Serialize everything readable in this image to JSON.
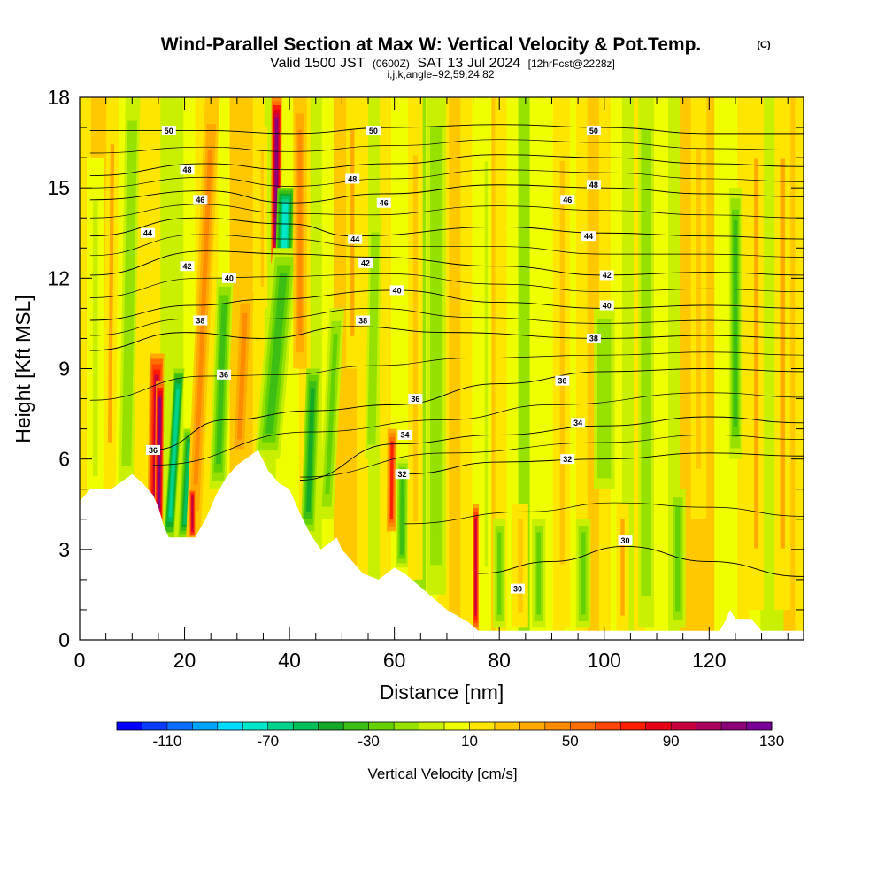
{
  "title": {
    "main": "Wind-Parallel Section at Max W: Vertical Velocity & Pot.Temp.",
    "copyright": "(C)",
    "line2_a": "Valid 1500 JST",
    "line2_b": "(0600Z)",
    "line2_c": "SAT 13 Jul 2024",
    "line2_d": "[12hrFcst@2228z]",
    "line3": "i,j,k,angle=92,59,24,82"
  },
  "chart_data": {
    "type": "heatmap",
    "xlabel": "Distance [nm]",
    "ylabel": "Height [Kft MSL]",
    "xlim": [
      0,
      138
    ],
    "ylim": [
      0,
      18
    ],
    "xticks": [
      0,
      20,
      40,
      60,
      80,
      100,
      120
    ],
    "xtick_labels": [
      "0",
      "20",
      "40",
      "60",
      "80",
      "100",
      "120"
    ],
    "yticks": [
      0,
      3,
      6,
      9,
      12,
      15,
      18
    ],
    "ytick_labels": [
      "0",
      "3",
      "6",
      "9",
      "12",
      "15",
      "18"
    ],
    "colorbar": {
      "title": "Vertical Velocity [cm/s]",
      "min": -130,
      "step": 10,
      "labels": [
        "-110",
        "-70",
        "-30",
        "10",
        "50",
        "90",
        "130"
      ],
      "colors": [
        "#0000ff",
        "#0a3cff",
        "#0a6eff",
        "#00a4ff",
        "#00dcff",
        "#00e6c8",
        "#00d28c",
        "#00be5a",
        "#14aa28",
        "#3cbe14",
        "#64d200",
        "#96e100",
        "#c8f000",
        "#f0ff00",
        "#ffe600",
        "#ffc800",
        "#ffaa00",
        "#ff8c00",
        "#ff6e00",
        "#ff4600",
        "#ff1e00",
        "#e60014",
        "#c8003c",
        "#aa005a",
        "#8c0078",
        "#780096"
      ]
    },
    "terrain_kft": [
      [
        0,
        4.6
      ],
      [
        2,
        5.0
      ],
      [
        6,
        5.0
      ],
      [
        10,
        5.5
      ],
      [
        12,
        5.2
      ],
      [
        14,
        4.8
      ],
      [
        15,
        4.4
      ],
      [
        16,
        3.8
      ],
      [
        17,
        3.4
      ],
      [
        20,
        3.4
      ],
      [
        22,
        3.4
      ],
      [
        24,
        4.0
      ],
      [
        26,
        4.8
      ],
      [
        28,
        5.4
      ],
      [
        30,
        5.8
      ],
      [
        34,
        6.3
      ],
      [
        36,
        5.6
      ],
      [
        38,
        5.2
      ],
      [
        40,
        5.0
      ],
      [
        42,
        4.2
      ],
      [
        44,
        3.5
      ],
      [
        46,
        3.0
      ],
      [
        49,
        3.4
      ],
      [
        50,
        3.0
      ],
      [
        52,
        2.6
      ],
      [
        54,
        2.2
      ],
      [
        57,
        2.0
      ],
      [
        60,
        2.4
      ],
      [
        62,
        2.2
      ],
      [
        66,
        1.6
      ],
      [
        70,
        1.0
      ],
      [
        74,
        0.6
      ],
      [
        76,
        0.3
      ],
      [
        122,
        0.3
      ],
      [
        123,
        0.6
      ],
      [
        124,
        1.0
      ],
      [
        125,
        0.7
      ],
      [
        128,
        0.7
      ],
      [
        130,
        0.3
      ],
      [
        138,
        0.3
      ]
    ],
    "series": [
      {
        "name": "30",
        "values": [
          [
            76,
            2.2
          ],
          [
            90,
            2.6
          ],
          [
            104,
            3.1
          ],
          [
            120,
            2.6
          ],
          [
            138,
            2.1
          ]
        ]
      },
      {
        "name": "32",
        "values": [
          [
            62,
            5.5
          ],
          [
            80,
            5.9
          ],
          [
            100,
            6.0
          ],
          [
            120,
            6.2
          ],
          [
            138,
            6.1
          ]
        ]
      },
      {
        "name": "34",
        "values": [
          [
            42,
            5.3
          ],
          [
            60,
            6.5
          ],
          [
            80,
            6.8
          ],
          [
            100,
            7.1
          ],
          [
            120,
            7.4
          ],
          [
            138,
            7.2
          ]
        ]
      },
      {
        "name": "36",
        "values": [
          [
            14,
            6.3
          ],
          [
            28,
            7.3
          ],
          [
            44,
            7.6
          ],
          [
            60,
            7.8
          ],
          [
            80,
            8.5
          ],
          [
            100,
            8.9
          ],
          [
            120,
            9.0
          ],
          [
            138,
            8.9
          ]
        ]
      },
      {
        "name": "38",
        "values": [
          [
            2,
            9.6
          ],
          [
            20,
            10.2
          ],
          [
            35,
            10.0
          ],
          [
            52,
            10.4
          ],
          [
            70,
            10.2
          ],
          [
            100,
            10.0
          ],
          [
            120,
            10.1
          ],
          [
            138,
            10.0
          ]
        ]
      },
      {
        "name": "40",
        "values": [
          [
            2,
            10.6
          ],
          [
            22,
            11.1
          ],
          [
            36,
            11.3
          ],
          [
            60,
            11.6
          ],
          [
            80,
            11.2
          ],
          [
            100,
            11.0
          ],
          [
            120,
            11.1
          ],
          [
            138,
            11.0
          ]
        ]
      },
      {
        "name": "42",
        "values": [
          [
            2,
            12.1
          ],
          [
            24,
            12.9
          ],
          [
            40,
            12.8
          ],
          [
            56,
            12.7
          ],
          [
            80,
            12.4
          ],
          [
            100,
            12.1
          ],
          [
            120,
            12.2
          ],
          [
            138,
            12.1
          ]
        ]
      },
      {
        "name": "44",
        "values": [
          [
            2,
            13.4
          ],
          [
            22,
            14.0
          ],
          [
            40,
            13.8
          ],
          [
            52,
            13.4
          ],
          [
            80,
            13.7
          ],
          [
            100,
            13.5
          ],
          [
            120,
            13.4
          ],
          [
            138,
            13.3
          ]
        ]
      },
      {
        "name": "46",
        "values": [
          [
            2,
            14.6
          ],
          [
            24,
            14.9
          ],
          [
            40,
            14.5
          ],
          [
            58,
            14.8
          ],
          [
            80,
            15.1
          ],
          [
            100,
            15.0
          ],
          [
            120,
            14.8
          ],
          [
            138,
            14.7
          ]
        ]
      },
      {
        "name": "48",
        "values": [
          [
            2,
            15.4
          ],
          [
            24,
            15.8
          ],
          [
            40,
            15.6
          ],
          [
            60,
            15.8
          ],
          [
            80,
            16.1
          ],
          [
            100,
            16.0
          ],
          [
            120,
            15.8
          ],
          [
            138,
            15.7
          ]
        ]
      },
      {
        "name": "50",
        "values": [
          [
            2,
            16.9
          ],
          [
            24,
            16.9
          ],
          [
            40,
            16.8
          ],
          [
            60,
            17.0
          ],
          [
            80,
            17.1
          ],
          [
            100,
            17.0
          ],
          [
            120,
            16.8
          ],
          [
            138,
            16.8
          ]
        ]
      }
    ],
    "contour_labels": [
      {
        "text": "50",
        "x": 17,
        "y": 16.9
      },
      {
        "text": "50",
        "x": 56,
        "y": 16.9
      },
      {
        "text": "50",
        "x": 98,
        "y": 16.9
      },
      {
        "text": "48",
        "x": 20.5,
        "y": 15.6
      },
      {
        "text": "48",
        "x": 52,
        "y": 15.3
      },
      {
        "text": "48",
        "x": 98,
        "y": 15.1
      },
      {
        "text": "46",
        "x": 23,
        "y": 14.6
      },
      {
        "text": "46",
        "x": 58,
        "y": 14.5
      },
      {
        "text": "46",
        "x": 93,
        "y": 14.6
      },
      {
        "text": "44",
        "x": 13,
        "y": 13.5
      },
      {
        "text": "44",
        "x": 52.5,
        "y": 13.3
      },
      {
        "text": "44",
        "x": 97,
        "y": 13.4
      },
      {
        "text": "42",
        "x": 20.5,
        "y": 12.4
      },
      {
        "text": "42",
        "x": 54.5,
        "y": 12.5
      },
      {
        "text": "42",
        "x": 100.5,
        "y": 12.1
      },
      {
        "text": "40",
        "x": 28.5,
        "y": 12.0
      },
      {
        "text": "40",
        "x": 60.5,
        "y": 11.6
      },
      {
        "text": "40",
        "x": 100.5,
        "y": 11.1
      },
      {
        "text": "38",
        "x": 23,
        "y": 10.6
      },
      {
        "text": "38",
        "x": 54,
        "y": 10.6
      },
      {
        "text": "38",
        "x": 98,
        "y": 10.0
      },
      {
        "text": "36",
        "x": 27.5,
        "y": 8.8
      },
      {
        "text": "36",
        "x": 64,
        "y": 8.0
      },
      {
        "text": "36",
        "x": 92,
        "y": 8.6
      },
      {
        "text": "36",
        "x": 14,
        "y": 6.3
      },
      {
        "text": "34",
        "x": 62,
        "y": 6.8
      },
      {
        "text": "34",
        "x": 95,
        "y": 7.2
      },
      {
        "text": "32",
        "x": 61.5,
        "y": 5.5
      },
      {
        "text": "32",
        "x": 93,
        "y": 6.0
      },
      {
        "text": "30",
        "x": 104,
        "y": 3.3
      },
      {
        "text": "30",
        "x": 83.5,
        "y": 1.7
      }
    ]
  }
}
